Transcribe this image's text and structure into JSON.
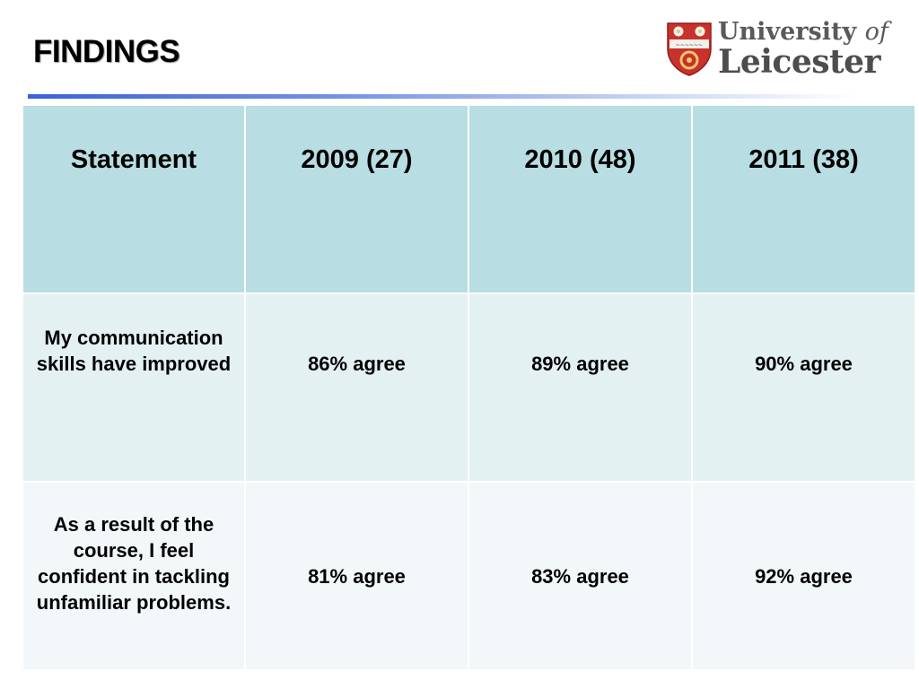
{
  "slide": {
    "title": "FINDINGS"
  },
  "logo": {
    "line1": "University",
    "line1_suffix": "of",
    "line2": "Leicester",
    "colors": {
      "crest_red": "#c8312c",
      "crest_gold": "#e8c76a",
      "text_gray": "#555555"
    }
  },
  "table": {
    "headers": [
      "Statement",
      "2009 (27)",
      "2010 (48)",
      "2011 (38)"
    ],
    "rows": [
      {
        "statement": "My communication skills have improved",
        "values": [
          "86% agree",
          "89% agree",
          "90% agree"
        ]
      },
      {
        "statement": "As a result of the course, I feel confident in tackling unfamiliar problems.",
        "values": [
          "81% agree",
          "83% agree",
          "92% agree"
        ]
      }
    ]
  },
  "colors": {
    "header_bg": "#b8dde2",
    "row1_bg": "#e4f1f3",
    "row2_bg": "#f2f8f9",
    "rule_blue": "#3a62d6"
  }
}
